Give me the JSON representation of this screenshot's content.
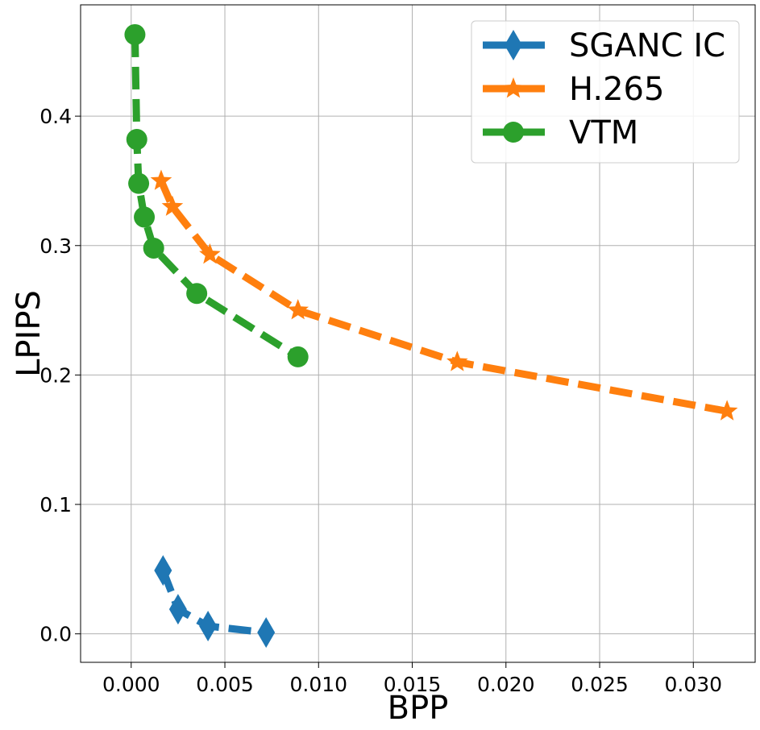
{
  "chart_data": {
    "type": "line",
    "title": "",
    "xlabel": "BPP",
    "ylabel": "LPIPS",
    "xlim": [
      -0.0027,
      0.0333
    ],
    "ylim": [
      -0.022,
      0.486
    ],
    "xticks": [
      0.0,
      0.005,
      0.01,
      0.015,
      0.02,
      0.025,
      0.03
    ],
    "xtick_labels": [
      "0.000",
      "0.005",
      "0.010",
      "0.015",
      "0.020",
      "0.025",
      "0.030"
    ],
    "yticks": [
      0.0,
      0.1,
      0.2,
      0.3,
      0.4
    ],
    "ytick_labels": [
      "0.0",
      "0.1",
      "0.2",
      "0.3",
      "0.4"
    ],
    "grid": true,
    "legend_position": "top-right",
    "series": [
      {
        "name": "SGANC IC",
        "color": "#1f77b4",
        "marker": "diamond",
        "x": [
          0.0017,
          0.0025,
          0.0041,
          0.0072
        ],
        "y": [
          0.049,
          0.019,
          0.006,
          0.001
        ]
      },
      {
        "name": "H.265",
        "color": "#ff7f0e",
        "marker": "star",
        "x": [
          0.0016,
          0.0022,
          0.0042,
          0.0089,
          0.0174,
          0.0318
        ],
        "y": [
          0.35,
          0.33,
          0.293,
          0.25,
          0.21,
          0.172
        ]
      },
      {
        "name": "VTM",
        "color": "#2ca02c",
        "marker": "circle",
        "x": [
          0.0002,
          0.0003,
          0.0004,
          0.0007,
          0.0012,
          0.0035,
          0.0089
        ],
        "y": [
          0.463,
          0.382,
          0.348,
          0.322,
          0.298,
          0.263,
          0.214
        ]
      }
    ]
  }
}
